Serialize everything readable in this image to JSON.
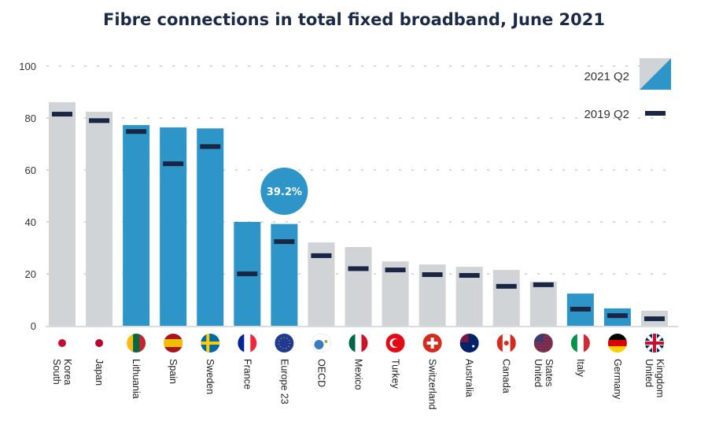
{
  "chart_data": {
    "type": "bar",
    "title": "Fibre connections in total fixed broadband, June 2021",
    "xlabel": "",
    "ylabel": "",
    "ylim": [
      0,
      100
    ],
    "yticks": [
      0,
      20,
      40,
      60,
      80,
      100
    ],
    "grid": true,
    "legend_position": "top-right",
    "categories": [
      "South Korea",
      "Japan",
      "Lithuania",
      "Spain",
      "Sweden",
      "France",
      "Europe 23",
      "OECD",
      "Mexico",
      "Turkey",
      "Switzerland",
      "Australia",
      "Canada",
      "United States",
      "Italy",
      "Germany",
      "United Kingdom"
    ],
    "category_lines": [
      [
        "South",
        "Korea"
      ],
      [
        "Japan"
      ],
      [
        "Lithuania"
      ],
      [
        "Spain"
      ],
      [
        "Sweden"
      ],
      [
        "France"
      ],
      [
        "Europe 23"
      ],
      [
        "OECD"
      ],
      [
        "Mexico"
      ],
      [
        "Turkey"
      ],
      [
        "Switzerland"
      ],
      [
        "Australia"
      ],
      [
        "Canada"
      ],
      [
        "United",
        "States"
      ],
      [
        "Italy"
      ],
      [
        "Germany"
      ],
      [
        "United",
        "Kingdom"
      ]
    ],
    "highlighted": [
      false,
      false,
      true,
      true,
      true,
      true,
      true,
      false,
      false,
      false,
      false,
      false,
      false,
      false,
      true,
      true,
      false
    ],
    "series": [
      {
        "name": "2021 Q2",
        "values": [
          86.1,
          82.4,
          77.3,
          76.4,
          76.0,
          40.0,
          39.2,
          32.1,
          30.3,
          24.8,
          23.6,
          22.7,
          21.5,
          17.0,
          12.4,
          6.7,
          5.8
        ]
      },
      {
        "name": "2019 Q2",
        "values": [
          81.5,
          79.0,
          74.8,
          62.4,
          69.0,
          20.0,
          32.4,
          27.0,
          22.0,
          21.5,
          19.7,
          19.4,
          15.2,
          15.8,
          6.4,
          3.9,
          2.7
        ]
      }
    ],
    "annotations": [
      {
        "category": "Europe 23",
        "text": "39.2%"
      }
    ],
    "flag_icons": [
      "south-korea-flag-icon",
      "japan-flag-icon",
      "lithuania-flag-icon",
      "spain-flag-icon",
      "sweden-flag-icon",
      "france-flag-icon",
      "eu-flag-icon",
      "oecd-logo-icon",
      "mexico-flag-icon",
      "turkey-flag-icon",
      "switzerland-flag-icon",
      "australia-flag-icon",
      "canada-flag-icon",
      "usa-flag-icon",
      "italy-flag-icon",
      "germany-flag-icon",
      "uk-flag-icon"
    ],
    "colors": {
      "highlight": "#2e95c8",
      "other": "#d0d4d7",
      "marker": "#1a2744",
      "title": "#1b2a47"
    }
  }
}
